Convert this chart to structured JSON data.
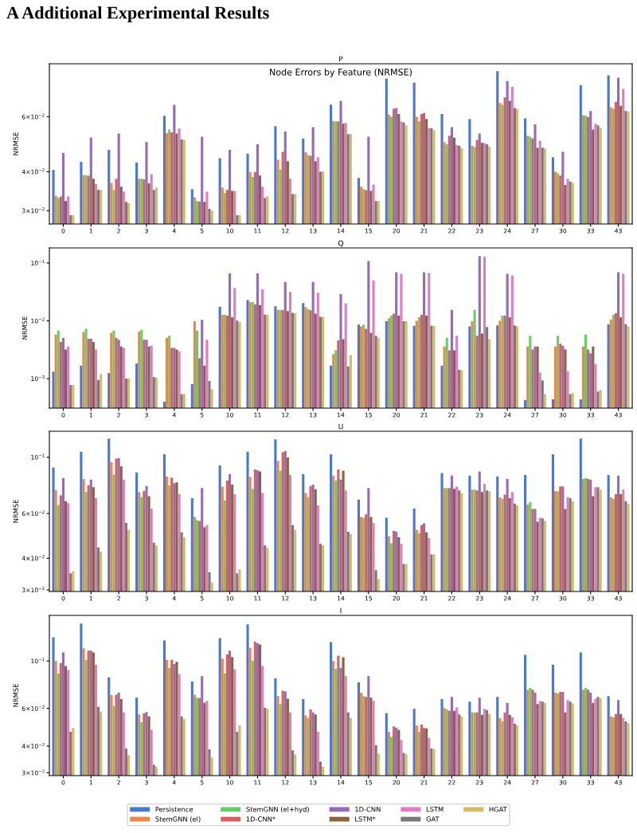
{
  "chart_data": [
    {
      "type": "bar",
      "title": "P",
      "ylabel": "NRMSE",
      "log": true,
      "annotations": [
        "A Additional Experimental Results",
        "Node Errors by Feature (NRMSE)"
      ],
      "categories": [
        "0",
        "1",
        "2",
        "3",
        "4",
        "5",
        "10",
        "11",
        "12",
        "13",
        "14",
        "15",
        "20",
        "21",
        "22",
        "23",
        "24",
        "27",
        "30",
        "33",
        "43"
      ],
      "ylim": [
        0.0272,
        0.0887
      ],
      "yticks": [
        {
          "value": 0.03,
          "label": "3×10$^{−2}$"
        },
        {
          "value": 0.04,
          "label": "4×10$^{−2}$"
        },
        {
          "value": 0.06,
          "label": "6×10$^{−2}$"
        }
      ],
      "series": [
        {
          "color": "#4878d0",
          "values": [
            0.0405,
            0.043,
            0.047,
            0.0428,
            0.0604,
            0.0352,
            0.0442,
            0.0457,
            0.056,
            0.0511,
            0.0656,
            0.0382,
            0.0795,
            0.0771,
            0.0612,
            0.059,
            0.084,
            0.0593,
            0.0445,
            0.0758,
            0.0814
          ]
        },
        {
          "color": "#ee854a",
          "values": [
            0.0335,
            0.039,
            0.0368,
            0.038,
            0.0532,
            0.0331,
            0.0356,
            0.04,
            0.0437,
            0.0462,
            0.0582,
            0.0358,
            0.061,
            0.06,
            0.0497,
            0.0484,
            0.0664,
            0.0522,
            0.04,
            0.0607,
            0.0643
          ]
        },
        {
          "color": "#6acc64",
          "values": [
            0.033,
            0.039,
            0.035,
            0.038,
            0.0546,
            0.0322,
            0.0342,
            0.0385,
            0.0407,
            0.0453,
            0.058,
            0.0352,
            0.06,
            0.058,
            0.049,
            0.048,
            0.0655,
            0.0518,
            0.0395,
            0.0604,
            0.0636
          ]
        },
        {
          "color": "#d65f5f",
          "values": [
            0.0333,
            0.0388,
            0.038,
            0.0378,
            0.0535,
            0.0321,
            0.035,
            0.0399,
            0.0463,
            0.045,
            0.058,
            0.0349,
            0.0636,
            0.0612,
            0.0522,
            0.0506,
            0.0692,
            0.0511,
            0.0389,
            0.0599,
            0.067
          ]
        },
        {
          "color": "#956cb4",
          "values": [
            0.046,
            0.0515,
            0.053,
            0.0498,
            0.0655,
            0.0518,
            0.047,
            0.049,
            0.0538,
            0.0556,
            0.0675,
            0.0518,
            0.064,
            0.0617,
            0.0556,
            0.053,
            0.078,
            0.0567,
            0.0463,
            0.0626,
            0.08
          ]
        },
        {
          "color": "#8c613c",
          "values": [
            0.0322,
            0.038,
            0.0358,
            0.0367,
            0.053,
            0.032,
            0.0347,
            0.0389,
            0.0432,
            0.0432,
            0.057,
            0.0347,
            0.0612,
            0.059,
            0.0514,
            0.0495,
            0.0675,
            0.0477,
            0.0363,
            0.0546,
            0.065
          ]
        },
        {
          "color": "#dc7ec0",
          "values": [
            0.0333,
            0.0365,
            0.0345,
            0.0393,
            0.055,
            0.0345,
            0.0347,
            0.0358,
            0.038,
            0.0445,
            0.0573,
            0.0364,
            0.058,
            0.0552,
            0.0487,
            0.0494,
            0.0748,
            0.0502,
            0.038,
            0.057,
            0.0737
          ]
        },
        {
          "color": "#797979",
          "values": [
            0.029,
            0.035,
            0.032,
            0.035,
            0.0507,
            0.0304,
            0.029,
            0.033,
            0.0339,
            0.04,
            0.0528,
            0.0322,
            0.0575,
            0.0552,
            0.0484,
            0.049,
            0.064,
            0.0478,
            0.0372,
            0.0563,
            0.0626
          ]
        },
        {
          "color": "#d5bb67",
          "values": [
            0.029,
            0.035,
            0.0317,
            0.0356,
            0.0506,
            0.03,
            0.029,
            0.0334,
            0.0339,
            0.0401,
            0.0528,
            0.0322,
            0.0563,
            0.0543,
            0.0476,
            0.0482,
            0.0635,
            0.0474,
            0.0368,
            0.0553,
            0.0624
          ]
        }
      ]
    },
    {
      "type": "bar",
      "title": "Q",
      "ylabel": "NRMSE",
      "log": true,
      "categories": [
        "0",
        "1",
        "2",
        "3",
        "4",
        "5",
        "10",
        "11",
        "12",
        "13",
        "14",
        "15",
        "20",
        "21",
        "22",
        "23",
        "24",
        "27",
        "30",
        "33",
        "43"
      ],
      "ylim": [
        0.00031,
        0.182
      ],
      "yticks": [
        {
          "value": 0.001,
          "label": "10$^{−3}$"
        },
        {
          "value": 0.01,
          "label": "10$^{−2}$"
        },
        {
          "value": 0.1,
          "label": "10$^{−1}$"
        }
      ],
      "series": [
        {
          "color": "#4878d0",
          "values": [
            0.00132,
            0.00168,
            0.00125,
            0.00183,
            0.0004,
            0.0008,
            0.0175,
            0.023,
            0.0178,
            0.0203,
            0.00168,
            0.0086,
            0.0098,
            0.0082,
            0.00168,
            0.008,
            0.0083,
            0.00043,
            0.00044,
            0.00044,
            0.0087
          ]
        },
        {
          "color": "#ee854a",
          "values": [
            0.0058,
            0.0064,
            0.0062,
            0.0065,
            0.0051,
            0.0098,
            0.0127,
            0.021,
            0.0154,
            0.0173,
            0.00265,
            0.008,
            0.0111,
            0.01,
            0.0036,
            0.0098,
            0.01,
            0.0036,
            0.0036,
            0.0036,
            0.0105
          ]
        },
        {
          "color": "#6acc64",
          "values": [
            0.0068,
            0.0073,
            0.0068,
            0.007,
            0.0055,
            0.0068,
            0.0127,
            0.021,
            0.0154,
            0.016,
            0.0031,
            0.0086,
            0.0123,
            0.0115,
            0.0051,
            0.0154,
            0.0123,
            0.0055,
            0.0055,
            0.0058,
            0.0127
          ]
        },
        {
          "color": "#d65f5f",
          "values": [
            0.0043,
            0.0049,
            0.0051,
            0.0047,
            0.0034,
            0.00225,
            0.0123,
            0.0193,
            0.0154,
            0.0152,
            0.0046,
            0.0073,
            0.0133,
            0.0127,
            0.0031,
            0.0055,
            0.0123,
            0.0032,
            0.004,
            0.0032,
            0.0135
          ]
        },
        {
          "color": "#956cb4",
          "values": [
            0.0051,
            0.0049,
            0.0047,
            0.0047,
            0.0034,
            0.0104,
            0.066,
            0.066,
            0.047,
            0.047,
            0.029,
            0.108,
            0.069,
            0.069,
            0.0154,
            0.132,
            0.065,
            0.0036,
            0.0037,
            0.00275,
            0.069
          ]
        },
        {
          "color": "#8c613c",
          "values": [
            0.0032,
            0.0043,
            0.0036,
            0.0036,
            0.0032,
            0.00168,
            0.0115,
            0.0187,
            0.0147,
            0.0133,
            0.0048,
            0.0062,
            0.0123,
            0.0123,
            0.0031,
            0.006,
            0.0115,
            0.0036,
            0.0032,
            0.0036,
            0.0115
          ]
        },
        {
          "color": "#dc7ec0",
          "values": [
            0.0036,
            0.0032,
            0.0034,
            0.0037,
            0.003,
            0.0047,
            0.037,
            0.035,
            0.0315,
            0.0305,
            0.02,
            0.05,
            0.065,
            0.067,
            0.0055,
            0.128,
            0.061,
            0.00128,
            0.00134,
            0.00177,
            0.065
          ]
        },
        {
          "color": "#797979",
          "values": [
            0.00078,
            0.00095,
            0.001,
            0.00107,
            0.00054,
            0.00091,
            0.0101,
            0.0128,
            0.0137,
            0.0117,
            0.00163,
            0.0055,
            0.0098,
            0.0082,
            0.00143,
            0.0078,
            0.0083,
            0.00093,
            0.00054,
            0.0006,
            0.0087
          ]
        },
        {
          "color": "#d5bb67",
          "values": [
            0.00078,
            0.0012,
            0.001,
            0.00104,
            0.00054,
            0.00066,
            0.0095,
            0.0128,
            0.0135,
            0.0117,
            0.00255,
            0.0051,
            0.0098,
            0.0082,
            0.0014,
            0.0048,
            0.008,
            0.00054,
            0.00056,
            0.00064,
            0.008
          ]
        }
      ]
    },
    {
      "type": "bar",
      "title": "U",
      "ylabel": "NRMSE",
      "log": true,
      "categories": [
        "0",
        "1",
        "2",
        "3",
        "4",
        "5",
        "10",
        "11",
        "12",
        "13",
        "14",
        "15",
        "20",
        "21",
        "22",
        "23",
        "24",
        "27",
        "30",
        "33",
        "43"
      ],
      "ylim": [
        0.0296,
        0.1265
      ],
      "yticks": [
        {
          "value": 0.03,
          "label": "3×10$^{−2}$"
        },
        {
          "value": 0.04,
          "label": "4×10$^{−2}$"
        },
        {
          "value": 0.06,
          "label": "6×10$^{−2}$"
        },
        {
          "value": 0.1,
          "label": "10$^{−1}$"
        }
      ],
      "series": [
        {
          "color": "#4878d0",
          "values": [
            0.091,
            0.105,
            0.1183,
            0.0871,
            0.1026,
            0.069,
            0.0928,
            0.105,
            0.1174,
            0.0858,
            0.1026,
            0.0681,
            0.0578,
            0.0628,
            0.0865,
            0.0846,
            0.084,
            0.0852,
            0.1026,
            0.1183,
            0.0852
          ]
        },
        {
          "color": "#ee854a",
          "values": [
            0.0742,
            0.082,
            0.0956,
            0.0729,
            0.084,
            0.0582,
            0.0765,
            0.0837,
            0.0967,
            0.0723,
            0.0846,
            0.0582,
            0.0488,
            0.0517,
            0.0756,
            0.0745,
            0.0694,
            0.0651,
            0.0734,
            0.082,
            0.0694
          ]
        },
        {
          "color": "#6acc64",
          "values": [
            0.065,
            0.0729,
            0.0855,
            0.0697,
            0.0776,
            0.0565,
            0.0676,
            0.075,
            0.0884,
            0.0697,
            0.0809,
            0.0578,
            0.0458,
            0.0502,
            0.0756,
            0.0745,
            0.0686,
            0.0666,
            0.0734,
            0.0827,
            0.0686
          ]
        },
        {
          "color": "#d65f5f",
          "values": [
            0.0707,
            0.0776,
            0.0988,
            0.0737,
            0.083,
            0.0561,
            0.0809,
            0.0894,
            0.1046,
            0.077,
            0.0894,
            0.0596,
            0.0513,
            0.054,
            0.0756,
            0.074,
            0.0712,
            0.0625,
            0.0767,
            0.082,
            0.0715
          ]
        },
        {
          "color": "#956cb4",
          "values": [
            0.0827,
            0.0815,
            0.0991,
            0.077,
            0.079,
            0.0756,
            0.0858,
            0.0888,
            0.1057,
            0.0779,
            0.0815,
            0.0756,
            0.0509,
            0.0549,
            0.0846,
            0.0878,
            0.0821,
            0.0625,
            0.0767,
            0.0815,
            0.0846
          ]
        },
        {
          "color": "#8c613c",
          "values": [
            0.0671,
            0.0762,
            0.092,
            0.0702,
            0.0796,
            0.053,
            0.0779,
            0.0878,
            0.0996,
            0.0748,
            0.0884,
            0.0582,
            0.0484,
            0.0506,
            0.075,
            0.0729,
            0.069,
            0.0557,
            0.0625,
            0.0702,
            0.0715
          ]
        },
        {
          "color": "#dc7ec0",
          "values": [
            0.0659,
            0.069,
            0.0815,
            0.0628,
            0.0715,
            0.054,
            0.0715,
            0.0723,
            0.0852,
            0.0646,
            0.074,
            0.0551,
            0.0456,
            0.048,
            0.0765,
            0.0785,
            0.0729,
            0.0578,
            0.0697,
            0.0762,
            0.0745
          ]
        },
        {
          "color": "#797979",
          "values": [
            0.0349,
            0.0441,
            0.0551,
            0.0461,
            0.0506,
            0.0352,
            0.0349,
            0.0449,
            0.054,
            0.0456,
            0.0509,
            0.0359,
            0.038,
            0.0414,
            0.074,
            0.074,
            0.0656,
            0.0574,
            0.069,
            0.0762,
            0.0671
          ]
        },
        {
          "color": "#d5bb67",
          "values": [
            0.0355,
            0.0425,
            0.0517,
            0.0449,
            0.0484,
            0.0321,
            0.0362,
            0.0439,
            0.0517,
            0.0449,
            0.0498,
            0.0331,
            0.038,
            0.0414,
            0.0723,
            0.0734,
            0.0646,
            0.0561,
            0.0671,
            0.0745,
            0.0656
          ]
        }
      ]
    },
    {
      "type": "bar",
      "title": "I",
      "ylabel": "NRMSE",
      "log": true,
      "legend": "bottom",
      "categories": [
        "0",
        "1",
        "2",
        "3",
        "4",
        "5",
        "10",
        "11",
        "12",
        "13",
        "14",
        "15",
        "20",
        "21",
        "22",
        "23",
        "24",
        "27",
        "30",
        "33",
        "43"
      ],
      "ylim": [
        0.0291,
        0.1635
      ],
      "yticks": [
        {
          "value": 0.03,
          "label": "3×10$^{−2}$"
        },
        {
          "value": 0.04,
          "label": "4×10$^{−2}$"
        },
        {
          "value": 0.06,
          "label": "6×10$^{−2}$"
        },
        {
          "value": 0.1,
          "label": "10$^{−1}$"
        }
      ],
      "series": [
        {
          "name": "Persistence",
          "color": "#4878d0",
          "values": [
            0.129,
            0.1496,
            0.0838,
            0.0674,
            0.1248,
            0.0801,
            0.128,
            0.1484,
            0.083,
            0.0663,
            0.1226,
            0.0794,
            0.057,
            0.0598,
            0.0663,
            0.0645,
            0.068,
            0.1068,
            0.0961,
            0.1097,
            0.0686
          ]
        },
        {
          "name": "StemGNN (el)",
          "color": "#ee854a",
          "values": [
            0.1,
            0.1147,
            0.0692,
            0.0562,
            0.1013,
            0.0695,
            0.1027,
            0.1152,
            0.0686,
            0.0557,
            0.1,
            0.0711,
            0.0467,
            0.05,
            0.0602,
            0.0575,
            0.0541,
            0.0734,
            0.0711,
            0.0734,
            0.055
          ]
        },
        {
          "name": "StemGNN (el+hyd)",
          "color": "#6acc64",
          "values": [
            0.0875,
            0.1013,
            0.0618,
            0.0517,
            0.0927,
            0.0674,
            0.0875,
            0.1005,
            0.0629,
            0.0541,
            0.0919,
            0.0686,
            0.0441,
            0.0467,
            0.0594,
            0.0575,
            0.0522,
            0.0749,
            0.0705,
            0.0749,
            0.0545
          ]
        },
        {
          "name": "1D-CNN*",
          "color": "#d65f5f",
          "values": [
            0.0978,
            0.1117,
            0.0695,
            0.057,
            0.1013,
            0.0671,
            0.1073,
            0.1232,
            0.0727,
            0.0594,
            0.1059,
            0.068,
            0.0494,
            0.0504,
            0.0585,
            0.0575,
            0.0575,
            0.0734,
            0.0717,
            0.0734,
            0.0565
          ]
        },
        {
          "name": "1D-CNN",
          "color": "#956cb4",
          "values": [
            0.1097,
            0.1117,
            0.0711,
            0.0577,
            0.0969,
            0.0849,
            0.1117,
            0.121,
            0.0721,
            0.0575,
            0.0927,
            0.0849,
            0.0488,
            0.0486,
            0.068,
            0.0674,
            0.0637,
            0.0711,
            0.0717,
            0.0711,
            0.0657
          ]
        },
        {
          "name": "LSTM*",
          "color": "#8c613c",
          "values": [
            0.0948,
            0.1097,
            0.0663,
            0.055,
            0.0991,
            0.0637,
            0.1045,
            0.1194,
            0.0666,
            0.0562,
            0.1041,
            0.0674,
            0.0477,
            0.0484,
            0.0585,
            0.056,
            0.056,
            0.0629,
            0.0575,
            0.0637,
            0.0565
          ]
        },
        {
          "name": "LSTM",
          "color": "#dc7ec0",
          "values": [
            0.0907,
            0.0961,
            0.0575,
            0.0477,
            0.0868,
            0.0651,
            0.0915,
            0.0948,
            0.0575,
            0.0467,
            0.0849,
            0.0651,
            0.0427,
            0.0437,
            0.0607,
            0.0598,
            0.0545,
            0.0651,
            0.0657,
            0.0666,
            0.0541
          ]
        },
        {
          "name": "GAT",
          "color": "#797979",
          "values": [
            0.0467,
            0.061,
            0.039,
            0.0327,
            0.055,
            0.0386,
            0.0467,
            0.0605,
            0.0382,
            0.0338,
            0.0575,
            0.0404,
            0.0372,
            0.039,
            0.0562,
            0.059,
            0.0508,
            0.0645,
            0.0645,
            0.068,
            0.0522
          ]
        },
        {
          "name": "HGAT",
          "color": "#d5bb67",
          "values": [
            0.0486,
            0.058,
            0.0363,
            0.032,
            0.0534,
            0.0353,
            0.05,
            0.0598,
            0.0366,
            0.032,
            0.0541,
            0.0369,
            0.0366,
            0.0386,
            0.055,
            0.0565,
            0.05,
            0.0637,
            0.0633,
            0.0669,
            0.0512
          ]
        }
      ]
    }
  ]
}
